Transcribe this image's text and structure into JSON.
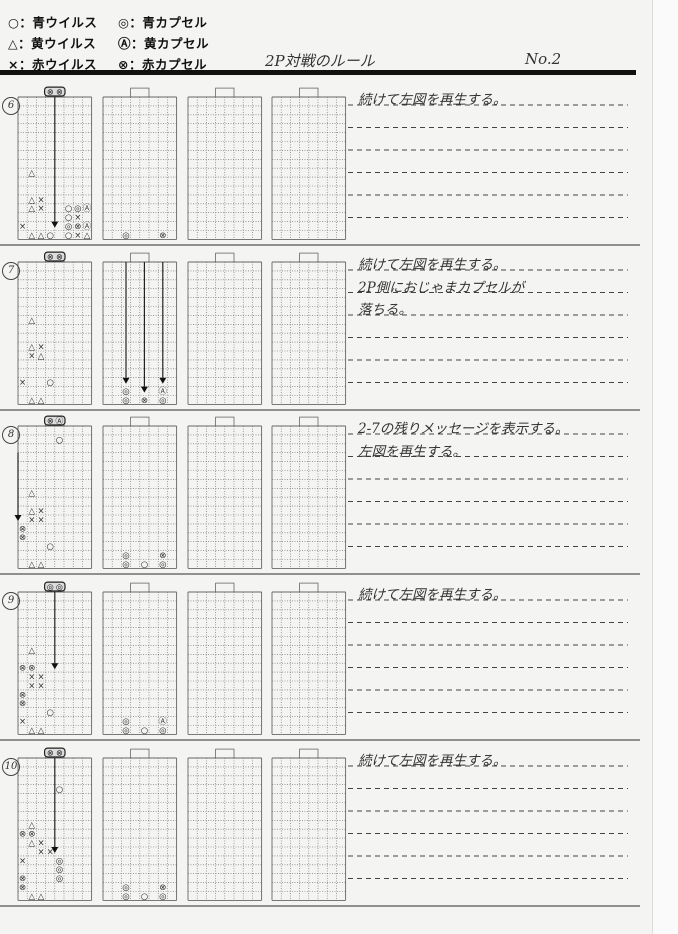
{
  "legend": [
    {
      "virus": "○：青ウイルス",
      "capsule": "◎：青カプセル"
    },
    {
      "virus": "△：黄ウイルス",
      "capsule": "Ⓐ：黄カプセル"
    },
    {
      "virus": "×：赤ウイルス",
      "capsule": "⊗：赤カプセル"
    }
  ],
  "title": "2P対戦のルール",
  "doc_number": "No.2",
  "glyphs": {
    "o": "○",
    "t": "△",
    "x": "×",
    "O": "◎",
    "T": "Ⓐ",
    "X": "⊗"
  },
  "sections": [
    {
      "step": "6",
      "notes": [
        "続けて左図を再生する。"
      ],
      "panels": [
        {
          "neck": "XX",
          "cells": [
            [
              1,
              8,
              "t"
            ],
            [
              1,
              11,
              "t"
            ],
            [
              2,
              11,
              "x"
            ],
            [
              1,
              12,
              "t"
            ],
            [
              2,
              12,
              "x"
            ],
            [
              5,
              12,
              "o"
            ],
            [
              6,
              12,
              "O"
            ],
            [
              7,
              12,
              "T"
            ],
            [
              5,
              13,
              "o"
            ],
            [
              6,
              13,
              "x"
            ],
            [
              5,
              14,
              "O"
            ],
            [
              6,
              14,
              "X"
            ],
            [
              7,
              14,
              "T"
            ],
            [
              5,
              15,
              "o"
            ],
            [
              6,
              15,
              "x"
            ],
            [
              7,
              15,
              "t"
            ],
            [
              0,
              14,
              "x"
            ],
            [
              3,
              15,
              "o"
            ],
            [
              1,
              16,
              "t"
            ],
            [
              2,
              16,
              "t"
            ]
          ],
          "arrows": [
            [
              4,
              0,
              14
            ]
          ]
        },
        {
          "neck": "",
          "cells": [
            [
              2,
              16,
              "O"
            ],
            [
              6,
              16,
              "X"
            ]
          ],
          "arrows": []
        },
        {
          "neck": "",
          "cells": [],
          "arrows": []
        },
        {
          "neck": "",
          "cells": [],
          "arrows": []
        }
      ]
    },
    {
      "step": "7",
      "notes": [
        "続けて左図を再生する。",
        "2P側におじゃまカプセルが",
        "落ちる。"
      ],
      "panels": [
        {
          "neck": "XX",
          "cells": [
            [
              1,
              6,
              "t"
            ],
            [
              1,
              9,
              "t"
            ],
            [
              2,
              9,
              "x"
            ],
            [
              1,
              10,
              "x"
            ],
            [
              2,
              10,
              "t"
            ],
            [
              0,
              13,
              "x"
            ],
            [
              3,
              13,
              "o"
            ],
            [
              1,
              15,
              "t"
            ],
            [
              2,
              15,
              "t"
            ]
          ],
          "arrows": []
        },
        {
          "neck": "",
          "cells": [
            [
              2,
              14,
              "O"
            ],
            [
              2,
              15,
              "O"
            ],
            [
              4,
              15,
              "X"
            ],
            [
              6,
              14,
              "T"
            ],
            [
              6,
              15,
              "O"
            ]
          ],
          "arrows": [
            [
              2,
              0,
              13
            ],
            [
              4,
              0,
              14
            ],
            [
              6,
              0,
              13
            ]
          ]
        },
        {
          "neck": "",
          "cells": [],
          "arrows": []
        },
        {
          "neck": "",
          "cells": [],
          "arrows": []
        }
      ]
    },
    {
      "step": "8",
      "notes": [
        "2-7の残りメッセージを表示する。",
        "左図を再生する。"
      ],
      "panels": [
        {
          "neck": "XT",
          "cells": [
            [
              4,
              1,
              "o"
            ],
            [
              1,
              7,
              "t"
            ],
            [
              1,
              9,
              "t"
            ],
            [
              2,
              9,
              "x"
            ],
            [
              1,
              10,
              "x"
            ],
            [
              2,
              10,
              "x"
            ],
            [
              0,
              11,
              "X"
            ],
            [
              0,
              12,
              "X"
            ],
            [
              3,
              13,
              "o"
            ],
            [
              1,
              15,
              "t"
            ],
            [
              2,
              15,
              "t"
            ]
          ],
          "arrows": [
            [
              0,
              3,
              10
            ]
          ]
        },
        {
          "neck": "",
          "cells": [
            [
              2,
              14,
              "O"
            ],
            [
              2,
              15,
              "O"
            ],
            [
              4,
              15,
              "o"
            ],
            [
              6,
              14,
              "X"
            ],
            [
              6,
              15,
              "O"
            ]
          ],
          "arrows": []
        },
        {
          "neck": "",
          "cells": [],
          "arrows": []
        },
        {
          "neck": "",
          "cells": [],
          "arrows": []
        }
      ]
    },
    {
      "step": "9",
      "notes": [
        "続けて左図を再生する。"
      ],
      "panels": [
        {
          "neck": "OO",
          "cells": [
            [
              1,
              6,
              "t"
            ],
            [
              0,
              8,
              "X"
            ],
            [
              1,
              8,
              "X"
            ],
            [
              1,
              9,
              "x"
            ],
            [
              2,
              9,
              "x"
            ],
            [
              1,
              10,
              "x"
            ],
            [
              2,
              10,
              "x"
            ],
            [
              0,
              11,
              "X"
            ],
            [
              0,
              12,
              "X"
            ],
            [
              3,
              13,
              "o"
            ],
            [
              0,
              14,
              "x"
            ],
            [
              1,
              15,
              "t"
            ],
            [
              2,
              15,
              "t"
            ]
          ],
          "arrows": [
            [
              4,
              0,
              8
            ]
          ]
        },
        {
          "neck": "",
          "cells": [
            [
              2,
              14,
              "O"
            ],
            [
              2,
              15,
              "O"
            ],
            [
              4,
              15,
              "o"
            ],
            [
              6,
              14,
              "T"
            ],
            [
              6,
              15,
              "O"
            ]
          ],
          "arrows": []
        },
        {
          "neck": "",
          "cells": [],
          "arrows": []
        },
        {
          "neck": "",
          "cells": [],
          "arrows": []
        }
      ]
    },
    {
      "step": "10",
      "notes": [
        "続けて左図を再生する。"
      ],
      "panels": [
        {
          "neck": "XX",
          "cells": [
            [
              4,
              3,
              "o"
            ],
            [
              1,
              7,
              "t"
            ],
            [
              0,
              8,
              "X"
            ],
            [
              1,
              8,
              "X"
            ],
            [
              1,
              9,
              "t"
            ],
            [
              2,
              9,
              "x"
            ],
            [
              2,
              10,
              "x"
            ],
            [
              3,
              10,
              "x"
            ],
            [
              0,
              11,
              "x"
            ],
            [
              4,
              11,
              "O"
            ],
            [
              4,
              12,
              "O"
            ],
            [
              0,
              13,
              "X"
            ],
            [
              4,
              13,
              "O"
            ],
            [
              0,
              14,
              "X"
            ],
            [
              1,
              15,
              "t"
            ],
            [
              2,
              15,
              "t"
            ]
          ],
          "arrows": [
            [
              4,
              0,
              10
            ]
          ]
        },
        {
          "neck": "",
          "cells": [
            [
              2,
              14,
              "O"
            ],
            [
              2,
              15,
              "O"
            ],
            [
              4,
              15,
              "o"
            ],
            [
              6,
              14,
              "X"
            ],
            [
              6,
              15,
              "O"
            ]
          ],
          "arrows": []
        },
        {
          "neck": "",
          "cells": [],
          "arrows": []
        },
        {
          "neck": "",
          "cells": [],
          "arrows": []
        }
      ]
    }
  ]
}
